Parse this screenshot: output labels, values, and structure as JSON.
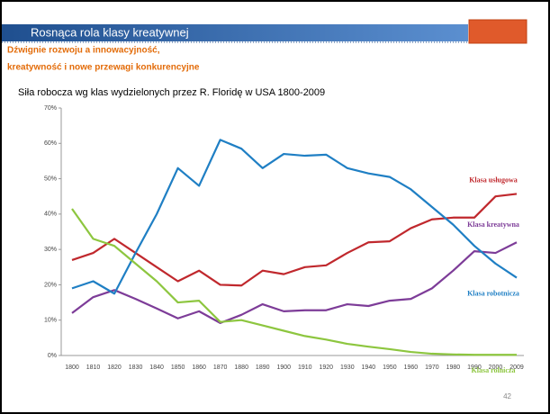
{
  "slide": {
    "title": "Rosnąca rola klasy kreatywnej",
    "subtitle": [
      "Dźwignie rozwoju a innowacyjność,",
      "kreatywność i nowe przewagi konkurencyjne"
    ],
    "page_number": "42"
  },
  "chart_data": {
    "type": "line",
    "title": "Siła robocza wg klas wydzielonych przez R. Floridę w USA 1800-2009",
    "categories": [
      1800,
      1810,
      1820,
      1830,
      1840,
      1850,
      1860,
      1870,
      1880,
      1890,
      1900,
      1910,
      1920,
      1930,
      1940,
      1950,
      1960,
      1970,
      1980,
      1990,
      2000,
      2009
    ],
    "ylim": [
      0,
      70
    ],
    "yticks": [
      {
        "value": 0,
        "label": "0%"
      },
      {
        "value": 10,
        "label": "10%"
      },
      {
        "value": 20,
        "label": "20%"
      },
      {
        "value": 30,
        "label": "30%"
      },
      {
        "value": 40,
        "label": "40%"
      },
      {
        "value": 50,
        "label": "50%"
      },
      {
        "value": 60,
        "label": "60%"
      },
      {
        "value": 70,
        "label": "70%"
      }
    ],
    "grid": false,
    "series": [
      {
        "name": "Klasa usługowa",
        "color": "#c0282d",
        "values": [
          27,
          29,
          33,
          29,
          25,
          21,
          24,
          20,
          19.8,
          24,
          23,
          25,
          25.5,
          29,
          32,
          32.3,
          36,
          38.5,
          39,
          39,
          45,
          45.7
        ]
      },
      {
        "name": "Klasa kreatywna",
        "color": "#7d3c98",
        "values": [
          12,
          16.5,
          18.5,
          16,
          13.3,
          10.5,
          12.5,
          9.2,
          11.5,
          14.5,
          12.5,
          12.8,
          12.8,
          14.5,
          14,
          15.5,
          16,
          19,
          24,
          29.5,
          29,
          32
        ]
      },
      {
        "name": "Klasa robotnicza",
        "color": "#1f7fc4",
        "values": [
          19,
          21,
          17.5,
          29,
          40,
          53,
          48,
          61,
          58.5,
          53,
          57,
          56.5,
          56.8,
          53,
          51.5,
          50.5,
          47,
          42,
          37,
          31,
          26,
          22
        ]
      },
      {
        "name": "Klasa rolnicza",
        "color": "#8dc63f",
        "values": [
          41.5,
          33,
          31,
          26,
          21,
          15,
          15.5,
          9.5,
          10,
          8.5,
          7,
          5.5,
          4.5,
          3.3,
          2.5,
          1.8,
          1,
          0.5,
          0.3,
          0.2,
          0.2,
          0.2
        ]
      }
    ]
  }
}
